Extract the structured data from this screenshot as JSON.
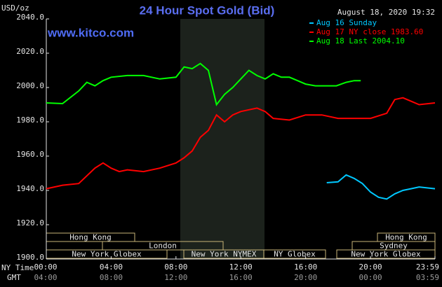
{
  "chart_data": {
    "type": "line",
    "title": "24 Hour Spot Gold (Bid)",
    "timestamp": "August 18, 2020 19:32",
    "y_label": "USD/oz",
    "watermark": "www.kitco.com",
    "x_label": "NY Time",
    "x2_label": "GMT",
    "xlim": [
      0,
      23.98
    ],
    "xticks": [
      {
        "value": 0,
        "label": "00:00"
      },
      {
        "value": 4,
        "label": "04:00"
      },
      {
        "value": 8,
        "label": "08:00"
      },
      {
        "value": 12,
        "label": "12:00"
      },
      {
        "value": 16,
        "label": "16:00"
      },
      {
        "value": 20,
        "label": "20:00"
      },
      {
        "value": 23.98,
        "label": "23:59"
      }
    ],
    "gmt_tick_labels": [
      "04:00",
      "08:00",
      "12:00",
      "16:00",
      "20:00",
      "00:00",
      "03:59"
    ],
    "ylim": [
      1900,
      2040
    ],
    "yticks": [
      {
        "value": 1900,
        "label": "1900.0"
      },
      {
        "value": 1920,
        "label": "1920.0"
      },
      {
        "value": 1940,
        "label": "1940.0"
      },
      {
        "value": 1960,
        "label": "1960.0"
      },
      {
        "value": 1980,
        "label": "1980.0"
      },
      {
        "value": 2000,
        "label": "2000.0"
      },
      {
        "value": 2020,
        "label": "2020.0"
      },
      {
        "value": 2040,
        "label": "2040.0"
      }
    ],
    "sessions": [
      "Hong Kong",
      "London",
      "New York Globex",
      "New York NYMEX",
      "NY Globex",
      "Hong Kong",
      "Sydney",
      "New York Globex"
    ],
    "series": [
      {
        "name": "Aug 16 Sunday",
        "color": "#00c8ff",
        "x": [
          17.3,
          18,
          18.5,
          19,
          19.5,
          20,
          20.5,
          21,
          21.5,
          22,
          22.5,
          23,
          23.98
        ],
        "values": [
          1944.5,
          1945,
          1949,
          1947,
          1944,
          1939,
          1936,
          1935,
          1938,
          1940,
          1941,
          1942,
          1941
        ]
      },
      {
        "name": "Aug 17 NY close 1983.60",
        "color": "#ff0000",
        "x": [
          0,
          1,
          2,
          3,
          3.5,
          4,
          4.5,
          5,
          6,
          7,
          8,
          8.5,
          9,
          9.5,
          10,
          10.5,
          11,
          11.5,
          12,
          12.5,
          13,
          13.5,
          14,
          15,
          16,
          17,
          18,
          19,
          20,
          21,
          21.5,
          22,
          22.5,
          23,
          23.98
        ],
        "values": [
          1941,
          1943,
          1944,
          1953,
          1956,
          1953,
          1951,
          1952,
          1951,
          1953,
          1956,
          1959,
          1963,
          1971,
          1975,
          1984,
          1980,
          1984,
          1986,
          1987,
          1988,
          1986,
          1982,
          1981,
          1984,
          1984,
          1982,
          1982,
          1982,
          1985,
          1993,
          1994,
          1992,
          1990,
          1991
        ]
      },
      {
        "name": "Aug 18 Last 2004.10",
        "color": "#00ff00",
        "x": [
          0,
          1,
          2,
          2.5,
          3,
          3.5,
          4,
          5,
          6,
          7,
          8,
          8.5,
          9,
          9.5,
          10,
          10.5,
          11,
          11.5,
          12,
          12.5,
          13,
          13.5,
          14,
          14.5,
          15,
          15.5,
          16,
          16.6,
          17.9,
          18.5,
          19,
          19.4
        ],
        "values": [
          1991,
          1990.6,
          1998,
          2003,
          2001,
          2004,
          2006,
          2007,
          2007,
          2005,
          2006,
          2012,
          2011,
          2014,
          2010,
          1990,
          1996,
          2000,
          2005,
          2010,
          2007,
          2005,
          2008,
          2006,
          2006,
          2004,
          2002,
          2001,
          2001,
          2003,
          2004,
          2004
        ]
      }
    ]
  }
}
